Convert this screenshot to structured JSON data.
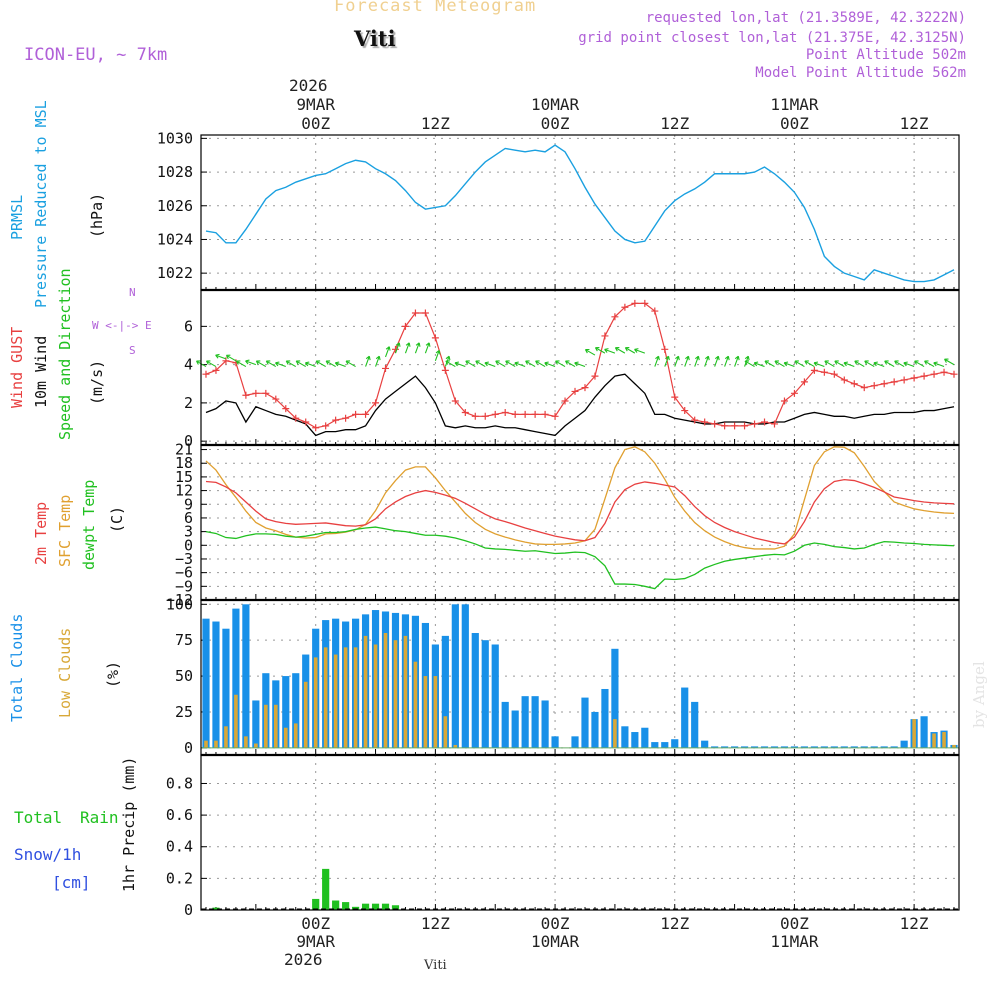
{
  "header": {
    "title": "Forecast Meteogram",
    "station": "Viti",
    "model": "ICON-EU, ~ 7km",
    "requested": "requested lon,lat (21.3589E, 42.3222N)",
    "grid_point": "grid point closest lon,lat (21.375E, 42.3125N)",
    "point_altitude": "Point Altitude 502m",
    "model_altitude": "Model Point Altitude 562m",
    "credit": "by Angel",
    "footer_station": "Viti"
  },
  "colors": {
    "pressure": "#1aa0e0",
    "gust": "#e84040",
    "wind": "#000000",
    "temp": "#e84040",
    "sfc": "#e0a030",
    "dewpt": "#20c020",
    "total_clouds": "#1890e8",
    "low_clouds": "#d8a838",
    "rain": "#20c020",
    "snow": "#3050e0",
    "purple": "#b060d8"
  },
  "time_axis": {
    "top_year": "2026",
    "bottom_year": "2026",
    "ticks": [
      {
        "label": "00Z",
        "date": "9MAR",
        "hour": 0
      },
      {
        "label": "12Z",
        "date": "",
        "hour": 12
      },
      {
        "label": "00Z",
        "date": "10MAR",
        "hour": 24
      },
      {
        "label": "12Z",
        "date": "",
        "hour": 36
      },
      {
        "label": "00Z",
        "date": "11MAR",
        "hour": 48
      },
      {
        "label": "12Z",
        "date": "",
        "hour": 60
      }
    ],
    "start_hour": -11.5,
    "end_hour": 64.5
  },
  "panels": {
    "pressure": {
      "labels": [
        "PRMSL",
        "Pressure Reduced to MSL",
        "(hPa)"
      ]
    },
    "wind": {
      "labels": [
        "Wind GUST",
        "10m Wind",
        "Speed and Direction",
        "(m/s)"
      ],
      "compass": [
        "N",
        "W <-|-> E",
        "S"
      ]
    },
    "temp": {
      "labels": [
        "2m Temp",
        "SFC Temp",
        "dewpt Temp",
        "(C)"
      ]
    },
    "clouds": {
      "labels": [
        "Total Clouds",
        "Low Clouds",
        "(%)"
      ]
    },
    "precip": {
      "labels": [
        "Total",
        "Rain",
        "Snow/1h",
        "[cm]",
        "1hr Precip (mm)"
      ]
    }
  },
  "chart_data": [
    {
      "type": "line",
      "title": "PRMSL Pressure Reduced to MSL",
      "ylabel": "(hPa)",
      "ylim": [
        1021,
        1030.2
      ],
      "yticks": [
        1022,
        1024,
        1026,
        1028,
        1030
      ],
      "x": [
        -11,
        -10,
        -9,
        -8,
        -7,
        -6,
        -5,
        -4,
        -3,
        -2,
        -1,
        0,
        1,
        2,
        3,
        4,
        5,
        6,
        7,
        8,
        9,
        10,
        11,
        12,
        13,
        14,
        15,
        16,
        17,
        18,
        19,
        20,
        21,
        22,
        23,
        24,
        25,
        26,
        27,
        28,
        29,
        30,
        31,
        32,
        33,
        34,
        35,
        36,
        37,
        38,
        39,
        40,
        41,
        42,
        43,
        44,
        45,
        46,
        47,
        48,
        49,
        50,
        51,
        52,
        53,
        54,
        55,
        56,
        57,
        58,
        59,
        60,
        61,
        62,
        63,
        64
      ],
      "series": [
        {
          "name": "PRMSL",
          "values": [
            1024.5,
            1024.4,
            1023.8,
            1023.8,
            1024.6,
            1025.5,
            1026.4,
            1026.9,
            1027.1,
            1027.4,
            1027.6,
            1027.8,
            1027.9,
            1028.2,
            1028.5,
            1028.7,
            1028.6,
            1028.2,
            1027.9,
            1027.5,
            1026.9,
            1026.2,
            1025.8,
            1025.9,
            1026.0,
            1026.6,
            1027.3,
            1028.0,
            1028.6,
            1029.0,
            1029.4,
            1029.3,
            1029.2,
            1029.3,
            1029.2,
            1029.6,
            1029.2,
            1028.2,
            1027.1,
            1026.1,
            1025.3,
            1024.5,
            1024.0,
            1023.8,
            1023.9,
            1024.8,
            1025.7,
            1026.3,
            1026.7,
            1027.0,
            1027.4,
            1027.9,
            1027.9,
            1027.9,
            1027.9,
            1028.0,
            1028.3,
            1027.9,
            1027.4,
            1026.8,
            1025.9,
            1024.6,
            1023.0,
            1022.4,
            1022.0,
            1021.8,
            1021.6,
            1022.2,
            1022.0,
            1021.8,
            1021.6,
            1021.5,
            1021.5,
            1021.6,
            1021.9,
            1022.2
          ]
        }
      ]
    },
    {
      "type": "line",
      "title": "Wind GUST / 10m Wind Speed and Direction",
      "ylabel": "(m/s)",
      "ylim": [
        -0.2,
        7.9
      ],
      "yticks": [
        0,
        2,
        4,
        6
      ],
      "x": [
        -11,
        -10,
        -9,
        -8,
        -7,
        -6,
        -5,
        -4,
        -3,
        -2,
        -1,
        0,
        1,
        2,
        3,
        4,
        5,
        6,
        7,
        8,
        9,
        10,
        11,
        12,
        13,
        14,
        15,
        16,
        17,
        18,
        19,
        20,
        21,
        22,
        23,
        24,
        25,
        26,
        27,
        28,
        29,
        30,
        31,
        32,
        33,
        34,
        35,
        36,
        37,
        38,
        39,
        40,
        41,
        42,
        43,
        44,
        45,
        46,
        47,
        48,
        49,
        50,
        51,
        52,
        53,
        54,
        55,
        56,
        57,
        58,
        59,
        60,
        61,
        62,
        63,
        64
      ],
      "series": [
        {
          "name": "Wind GUST",
          "values": [
            3.5,
            3.7,
            4.2,
            4.1,
            2.4,
            2.5,
            2.5,
            2.2,
            1.7,
            1.2,
            1.0,
            0.7,
            0.8,
            1.1,
            1.2,
            1.4,
            1.4,
            2.0,
            3.8,
            4.8,
            6.0,
            6.7,
            6.7,
            5.4,
            3.7,
            2.1,
            1.5,
            1.3,
            1.3,
            1.4,
            1.5,
            1.4,
            1.4,
            1.4,
            1.4,
            1.3,
            2.1,
            2.6,
            2.8,
            3.4,
            5.5,
            6.5,
            7.0,
            7.2,
            7.2,
            6.8,
            4.8,
            2.3,
            1.6,
            1.1,
            1.0,
            0.9,
            0.8,
            0.8,
            0.8,
            0.9,
            1.0,
            0.9,
            2.1,
            2.5,
            3.1,
            3.7,
            3.6,
            3.5,
            3.2,
            3.0,
            2.8,
            2.9,
            3.0,
            3.1,
            3.2,
            3.3,
            3.4,
            3.5,
            3.6,
            3.5
          ]
        },
        {
          "name": "10m Wind",
          "values": [
            1.5,
            1.7,
            2.1,
            2.0,
            1.0,
            1.8,
            1.6,
            1.4,
            1.3,
            1.1,
            0.9,
            0.3,
            0.5,
            0.5,
            0.6,
            0.6,
            0.8,
            1.6,
            2.2,
            2.6,
            3.0,
            3.4,
            2.8,
            2.0,
            0.8,
            0.7,
            0.8,
            0.7,
            0.7,
            0.8,
            0.7,
            0.7,
            0.6,
            0.5,
            0.4,
            0.3,
            0.8,
            1.2,
            1.6,
            2.3,
            2.9,
            3.4,
            3.5,
            3.0,
            2.5,
            1.4,
            1.4,
            1.2,
            1.1,
            1.0,
            0.9,
            0.9,
            1.0,
            1.0,
            1.0,
            0.9,
            0.9,
            1.0,
            1.0,
            1.2,
            1.4,
            1.5,
            1.4,
            1.3,
            1.3,
            1.2,
            1.3,
            1.4,
            1.4,
            1.5,
            1.5,
            1.5,
            1.6,
            1.6,
            1.7,
            1.8
          ]
        }
      ]
    },
    {
      "type": "line",
      "title": "2m Temp / SFC Temp / dewpt Temp",
      "ylabel": "(C)",
      "ylim": [
        -12,
        22
      ],
      "yticks": [
        -12,
        -9,
        -6,
        -3,
        0,
        3,
        6,
        9,
        12,
        15,
        18,
        21
      ],
      "x": [
        -11,
        -10,
        -9,
        -8,
        -7,
        -6,
        -5,
        -4,
        -3,
        -2,
        -1,
        0,
        1,
        2,
        3,
        4,
        5,
        6,
        7,
        8,
        9,
        10,
        11,
        12,
        13,
        14,
        15,
        16,
        17,
        18,
        19,
        20,
        21,
        22,
        23,
        24,
        25,
        26,
        27,
        28,
        29,
        30,
        31,
        32,
        33,
        34,
        35,
        36,
        37,
        38,
        39,
        40,
        41,
        42,
        43,
        44,
        45,
        46,
        47,
        48,
        49,
        50,
        51,
        52,
        53,
        54,
        55,
        56,
        57,
        58,
        59,
        60,
        61,
        62,
        63,
        64
      ],
      "series": [
        {
          "name": "2m Temp",
          "values": [
            14.0,
            13.8,
            12.8,
            11.5,
            9.5,
            7.5,
            5.8,
            5.2,
            4.8,
            4.6,
            4.7,
            4.8,
            4.9,
            4.6,
            4.3,
            4.2,
            4.5,
            5.8,
            8.0,
            9.5,
            10.7,
            11.5,
            12.0,
            11.6,
            11.0,
            10.3,
            9.2,
            8.0,
            6.8,
            5.8,
            5.2,
            4.5,
            3.8,
            3.2,
            2.6,
            2.0,
            1.6,
            1.2,
            1.0,
            1.7,
            4.8,
            9.5,
            12.2,
            13.4,
            13.9,
            13.6,
            13.2,
            12.8,
            10.9,
            8.5,
            6.5,
            5.0,
            3.9,
            3.0,
            2.3,
            1.6,
            1.1,
            0.6,
            0.3,
            1.8,
            5.2,
            9.5,
            12.4,
            14.0,
            14.4,
            14.2,
            13.5,
            12.7,
            11.7,
            10.6,
            10.2,
            9.8,
            9.5,
            9.3,
            9.2,
            9.1
          ]
        },
        {
          "name": "SFC Temp",
          "values": [
            18.5,
            16.5,
            13.3,
            10.5,
            7.5,
            5.0,
            3.8,
            3.2,
            2.4,
            1.8,
            1.6,
            1.7,
            2.5,
            2.6,
            2.9,
            3.4,
            4.6,
            7.6,
            11.5,
            14.2,
            16.5,
            17.2,
            17.2,
            14.8,
            12.0,
            9.5,
            7.0,
            5.0,
            3.5,
            2.5,
            1.8,
            1.2,
            0.7,
            0.3,
            0.2,
            0.2,
            0.3,
            0.5,
            1.0,
            3.5,
            10.2,
            17.0,
            21.0,
            21.6,
            20.5,
            18.0,
            14.5,
            10.5,
            7.5,
            5.0,
            3.2,
            1.8,
            0.8,
            0.0,
            -0.5,
            -0.8,
            -0.8,
            -0.8,
            -0.2,
            2.5,
            10.0,
            17.5,
            20.5,
            21.6,
            21.5,
            20.3,
            17.3,
            14.0,
            11.8,
            9.5,
            8.7,
            8.0,
            7.6,
            7.3,
            7.1,
            7.0
          ]
        },
        {
          "name": "dewpt Temp",
          "values": [
            3.0,
            2.6,
            1.7,
            1.5,
            2.1,
            2.5,
            2.5,
            2.4,
            2.0,
            1.8,
            2.0,
            2.4,
            2.8,
            2.8,
            3.0,
            3.5,
            3.8,
            4.0,
            3.6,
            3.2,
            3.0,
            2.6,
            2.2,
            2.2,
            2.0,
            1.6,
            1.0,
            0.3,
            -0.6,
            -0.8,
            -0.9,
            -1.1,
            -1.3,
            -1.2,
            -1.5,
            -1.8,
            -1.7,
            -1.5,
            -1.6,
            -2.5,
            -4.5,
            -8.5,
            -8.5,
            -8.6,
            -9.0,
            -9.5,
            -7.4,
            -7.5,
            -7.3,
            -6.4,
            -5.0,
            -4.2,
            -3.5,
            -3.1,
            -2.8,
            -2.5,
            -2.2,
            -2.0,
            -2.1,
            -1.3,
            0.0,
            0.5,
            0.2,
            -0.3,
            -0.5,
            -0.8,
            -0.6,
            0.2,
            0.8,
            0.7,
            0.5,
            0.4,
            0.2,
            0.1,
            0.0,
            -0.1
          ]
        }
      ]
    },
    {
      "type": "bar",
      "title": "Total Clouds / Low Clouds",
      "ylabel": "(%)",
      "ylim": [
        -5,
        103
      ],
      "yticks": [
        0,
        25,
        50,
        75,
        100
      ],
      "x": [
        -11,
        -10,
        -9,
        -8,
        -7,
        -6,
        -5,
        -4,
        -3,
        -2,
        -1,
        0,
        1,
        2,
        3,
        4,
        5,
        6,
        7,
        8,
        9,
        10,
        11,
        12,
        13,
        14,
        15,
        16,
        17,
        18,
        19,
        20,
        21,
        22,
        23,
        24,
        25,
        26,
        27,
        28,
        29,
        30,
        31,
        32,
        33,
        34,
        35,
        36,
        37,
        38,
        39,
        40,
        41,
        42,
        43,
        44,
        45,
        46,
        47,
        48,
        49,
        50,
        51,
        52,
        53,
        54,
        55,
        56,
        57,
        58,
        59,
        60,
        61,
        62,
        63,
        64
      ],
      "series": [
        {
          "name": "Total Clouds",
          "values": [
            90,
            88,
            83,
            97,
            100,
            33,
            52,
            47,
            50,
            52,
            65,
            83,
            89,
            90,
            88,
            90,
            93,
            96,
            95,
            94,
            93,
            92,
            87,
            72,
            78,
            100,
            100,
            80,
            75,
            72,
            32,
            26,
            36,
            36,
            33,
            8,
            0,
            8,
            35,
            25,
            41,
            69,
            15,
            11,
            14,
            4,
            4,
            6,
            42,
            32,
            5,
            1,
            1,
            1,
            1,
            1,
            1,
            1,
            1,
            1,
            1,
            1,
            1,
            1,
            1,
            1,
            1,
            1,
            1,
            1,
            5,
            20,
            22,
            11,
            12,
            2
          ]
        },
        {
          "name": "Low Clouds",
          "values": [
            5,
            5,
            15,
            37,
            8,
            3,
            30,
            30,
            14,
            17,
            46,
            63,
            70,
            65,
            70,
            70,
            78,
            72,
            80,
            75,
            78,
            60,
            50,
            50,
            22,
            2,
            0,
            0,
            0,
            0,
            0,
            0,
            0,
            0,
            0,
            0,
            0,
            0,
            0,
            0,
            0,
            20,
            0,
            0,
            0,
            0,
            0,
            0,
            0,
            0,
            0,
            0,
            0,
            0,
            0,
            0,
            0,
            0,
            0,
            0,
            0,
            0,
            0,
            0,
            0,
            0,
            0,
            0,
            0,
            0,
            0,
            20,
            0,
            10,
            11,
            2
          ]
        }
      ]
    },
    {
      "type": "bar",
      "title": "Total Rain / Snow 1hr Precip",
      "ylabel": "1hr Precip (mm)",
      "ylim": [
        0,
        0.98
      ],
      "yticks": [
        0,
        0.2,
        0.4,
        0.6,
        0.8
      ],
      "ytick_labels": [
        "0",
        "0.2",
        "0.4",
        "0.6",
        "0.8"
      ],
      "x": [
        -10,
        0,
        1,
        2,
        3,
        4,
        5,
        6,
        7,
        8
      ],
      "series": [
        {
          "name": "Total Rain",
          "values": [
            0.015,
            0.07,
            0.26,
            0.06,
            0.05,
            0.02,
            0.04,
            0.04,
            0.04,
            0.03
          ]
        }
      ]
    }
  ]
}
